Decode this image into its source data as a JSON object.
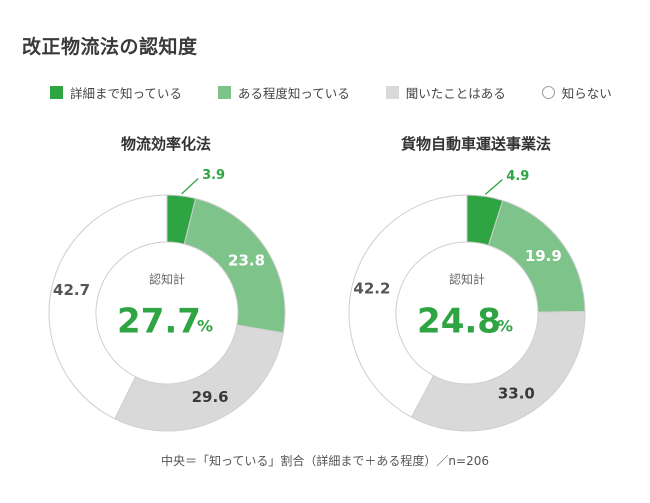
{
  "title": "改正物流法の認知度",
  "legend": [
    {
      "label": "詳細まで知っている",
      "color": "#2ea443",
      "shape": "square"
    },
    {
      "label": "ある程度知っている",
      "color": "#7ec38a",
      "shape": "square"
    },
    {
      "label": "聞いたことはある",
      "color": "#d9d9d9",
      "shape": "square"
    },
    {
      "label": "知らない",
      "color": "#ffffff",
      "shape": "circle"
    }
  ],
  "footnote": "中央＝「知っている」割合（詳細まで＋ある程度）／n=206",
  "chart_data": [
    {
      "type": "pie",
      "title": "物流効率化法",
      "categories": [
        "詳細まで知っている",
        "ある程度知っている",
        "聞いたことはある",
        "知らない"
      ],
      "values": [
        3.9,
        23.8,
        29.6,
        42.7
      ],
      "value_labels": [
        "3.9",
        "23.8",
        "29.6",
        "42.7"
      ],
      "center_label": "認知計",
      "center_value": "27.7",
      "center_unit": "%"
    },
    {
      "type": "pie",
      "title": "貨物自動車運送事業法",
      "categories": [
        "詳細まで知っている",
        "ある程度知っている",
        "聞いたことはある",
        "知らない"
      ],
      "values": [
        4.9,
        19.9,
        33.0,
        42.2
      ],
      "value_labels": [
        "4.9",
        "19.9",
        "33.0",
        "42.2"
      ],
      "center_label": "認知計",
      "center_value": "24.8",
      "center_unit": "%"
    }
  ]
}
